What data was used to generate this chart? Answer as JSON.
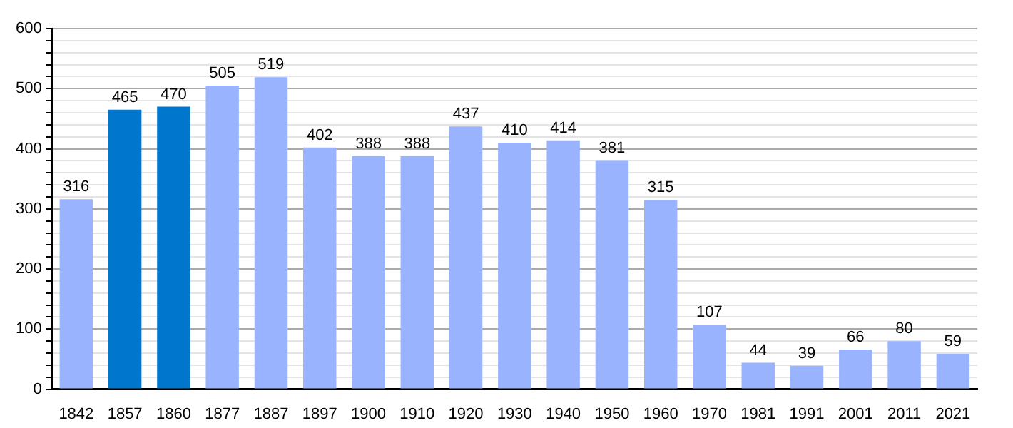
{
  "chart_data": {
    "type": "bar",
    "categories": [
      "1842",
      "1857",
      "1860",
      "1877",
      "1887",
      "1897",
      "1900",
      "1910",
      "1920",
      "1930",
      "1940",
      "1950",
      "1960",
      "1970",
      "1981",
      "1991",
      "2001",
      "2011",
      "2021"
    ],
    "values": [
      316,
      465,
      470,
      505,
      519,
      402,
      388,
      388,
      437,
      410,
      414,
      381,
      315,
      107,
      44,
      39,
      66,
      80,
      59
    ],
    "colors": [
      "#99b3ff",
      "#0077cc",
      "#0077cc",
      "#99b3ff",
      "#99b3ff",
      "#99b3ff",
      "#99b3ff",
      "#99b3ff",
      "#99b3ff",
      "#99b3ff",
      "#99b3ff",
      "#99b3ff",
      "#99b3ff",
      "#99b3ff",
      "#99b3ff",
      "#99b3ff",
      "#99b3ff",
      "#99b3ff",
      "#99b3ff"
    ],
    "ylim": [
      0,
      600
    ],
    "yticks": [
      0,
      {
        "value": 20,
        "label": null
      },
      {
        "value": 40,
        "label": null
      },
      {
        "value": 60,
        "label": null
      },
      {
        "value": 80,
        "label": null
      },
      100,
      {
        "value": 120,
        "label": null
      },
      {
        "value": 140,
        "label": null
      },
      {
        "value": 160,
        "label": null
      },
      {
        "value": 180,
        "label": null
      },
      200,
      {
        "value": 220,
        "label": null
      },
      {
        "value": 240,
        "label": null
      },
      {
        "value": 260,
        "label": null
      },
      {
        "value": 280,
        "label": null
      },
      300,
      {
        "value": 320,
        "label": null
      },
      {
        "value": 340,
        "label": null
      },
      {
        "value": 360,
        "label": null
      },
      {
        "value": 380,
        "label": null
      },
      400,
      {
        "value": 420,
        "label": null
      },
      {
        "value": 440,
        "label": null
      },
      {
        "value": 460,
        "label": null
      },
      {
        "value": 480,
        "label": null
      },
      500,
      {
        "value": 520,
        "label": null
      },
      {
        "value": 540,
        "label": null
      },
      {
        "value": 560,
        "label": null
      },
      {
        "value": 580,
        "label": null
      },
      600
    ],
    "grid": "y",
    "data_labels": true
  }
}
